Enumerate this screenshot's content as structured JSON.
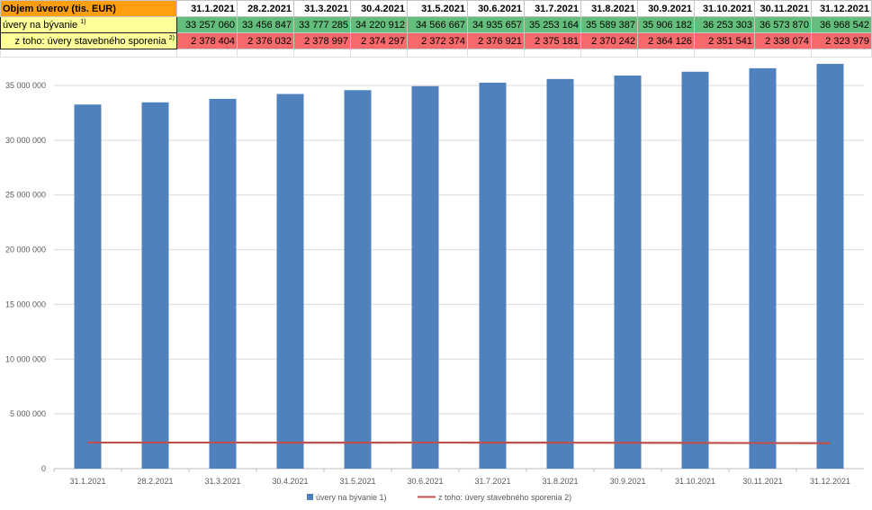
{
  "table": {
    "header_label": "Objem úverov (tis. EUR)",
    "dates": [
      "31.1.2021",
      "28.2.2021",
      "31.3.2021",
      "30.4.2021",
      "31.5.2021",
      "30.6.2021",
      "31.7.2021",
      "31.8.2021",
      "30.9.2021",
      "31.10.2021",
      "30.11.2021",
      "31.12.2021"
    ],
    "row1_label": "úvery na bývanie",
    "row1_note": "1)",
    "row1_values": [
      "33 257 060",
      "33 456 847",
      "33 777 285",
      "34 220 912",
      "34 566 667",
      "34 935 657",
      "35 253 164",
      "35 589 387",
      "35 906 182",
      "36 253 303",
      "36 573 870",
      "36 968 542"
    ],
    "row2_label": "z toho: úvery stavebného sporenia",
    "row2_note": "2)",
    "row2_values": [
      "2 378 404",
      "2 376 032",
      "2 378 997",
      "2 374 297",
      "2 372 374",
      "2 376 921",
      "2 375 181",
      "2 370 242",
      "2 364 126",
      "2 351 541",
      "2 338 074",
      "2 323 979"
    ]
  },
  "colors": {
    "header_fill": "#ff9f10",
    "row1_fill": "#63be7b",
    "row2_fill": "#f8696b",
    "label_fill": "#ffff99",
    "bar": "#4f81bd",
    "line": "#c0504d",
    "grid": "#d9d9d9"
  },
  "chart_data": {
    "type": "bar",
    "categories": [
      "31.1.2021",
      "28.2.2021",
      "31.3.2021",
      "30.4.2021",
      "31.5.2021",
      "30.6.2021",
      "31.7.2021",
      "31.8.2021",
      "30.9.2021",
      "31.10.2021",
      "30.11.2021",
      "31.12.2021"
    ],
    "series": [
      {
        "name": "úvery na bývanie 1)",
        "kind": "bar",
        "values": [
          33257060,
          33456847,
          33777285,
          34220912,
          34566667,
          34935657,
          35253164,
          35589387,
          35906182,
          36253303,
          36573870,
          36968542
        ]
      },
      {
        "name": "z toho: úvery stavebného sporenia 2)",
        "kind": "line",
        "values": [
          2378404,
          2376032,
          2378997,
          2374297,
          2372374,
          2376921,
          2375181,
          2370242,
          2364126,
          2351541,
          2338074,
          2323979
        ]
      }
    ],
    "ylim": [
      0,
      35000000
    ],
    "yticks": [
      0,
      5000000,
      10000000,
      15000000,
      20000000,
      25000000,
      30000000,
      35000000
    ],
    "ytick_labels": [
      "0",
      "5 000 000",
      "10 000 000",
      "15 000 000",
      "20 000 000",
      "25 000 000",
      "30 000 000",
      "35 000 000"
    ],
    "grid": true,
    "legend_position": "bottom"
  }
}
